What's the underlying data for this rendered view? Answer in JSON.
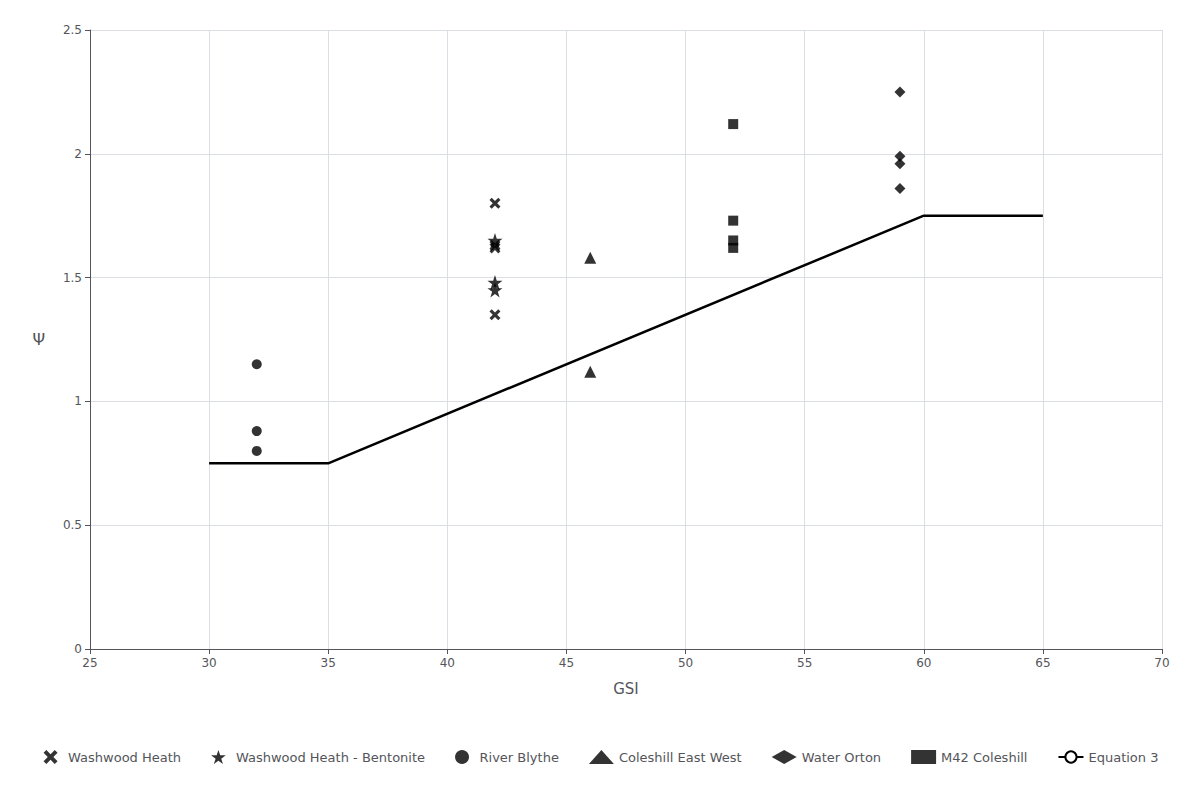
{
  "chart_data": {
    "type": "scatter",
    "xlabel": "GSI",
    "ylabel": "Ψ",
    "xlim": [
      25,
      70
    ],
    "ylim": [
      0,
      2.5
    ],
    "xticks": [
      25,
      30,
      35,
      40,
      45,
      50,
      55,
      60,
      65,
      70
    ],
    "yticks": [
      0,
      0.5,
      1.0,
      1.5,
      2.0,
      2.5
    ],
    "grid": true,
    "legend": "bottom",
    "series": [
      {
        "name": "Washwood Heath",
        "type": "scatter",
        "marker": "x",
        "color": "#000000",
        "x": [
          42,
          42,
          42,
          42
        ],
        "values": [
          1.8,
          1.63,
          1.62,
          1.35
        ]
      },
      {
        "name": "Washwood Heath - Bentonite",
        "type": "scatter",
        "marker": "star",
        "color": "#000000",
        "x": [
          42,
          42,
          42
        ],
        "values": [
          1.65,
          1.48,
          1.45
        ]
      },
      {
        "name": "River Blythe",
        "type": "scatter",
        "marker": "circle",
        "color": "#000000",
        "x": [
          32,
          32,
          32
        ],
        "values": [
          1.15,
          0.88,
          0.8
        ]
      },
      {
        "name": "Coleshill East West",
        "type": "scatter",
        "marker": "triangle",
        "color": "#000000",
        "x": [
          46,
          46
        ],
        "values": [
          1.58,
          1.12
        ]
      },
      {
        "name": "Water Orton",
        "type": "scatter",
        "marker": "diamond",
        "color": "#000000",
        "x": [
          59,
          59,
          59,
          59
        ],
        "values": [
          2.25,
          1.99,
          1.96,
          1.86
        ]
      },
      {
        "name": "M42 Coleshill",
        "type": "scatter",
        "marker": "square",
        "color": "#000000",
        "x": [
          52,
          52,
          52,
          52
        ],
        "values": [
          2.12,
          1.73,
          1.65,
          1.62
        ]
      },
      {
        "name": "Equation 3",
        "type": "line",
        "line_style": "solid",
        "color": "#000000",
        "x": [
          30,
          35,
          60,
          65
        ],
        "values": [
          0.75,
          0.75,
          1.75,
          1.75
        ]
      }
    ]
  }
}
